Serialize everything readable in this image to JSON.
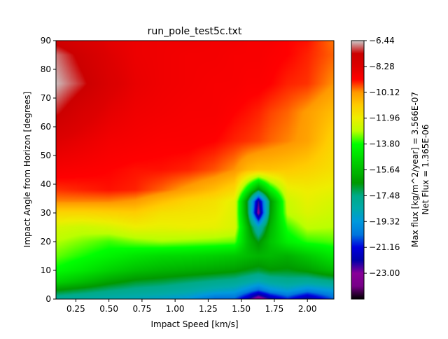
{
  "chart_data": {
    "type": "heatmap",
    "title": "run_pole_test5c.txt",
    "xlabel": "Impact Speed [km/s]",
    "ylabel": "Impact Angle from Horizon [degrees]",
    "xlim": [
      0.1,
      2.2
    ],
    "ylim": [
      0,
      90
    ],
    "x_ticks": [
      0.25,
      0.5,
      0.75,
      1.0,
      1.25,
      1.5,
      1.75,
      2.0
    ],
    "x_tick_labels": [
      "0.25",
      "0.50",
      "0.75",
      "1.00",
      "1.25",
      "1.50",
      "1.75",
      "2.00"
    ],
    "y_ticks": [
      0,
      10,
      20,
      30,
      40,
      50,
      60,
      70,
      80,
      90
    ],
    "y_tick_labels": [
      "0",
      "10",
      "20",
      "30",
      "40",
      "50",
      "60",
      "70",
      "80",
      "90"
    ],
    "colorbar": {
      "label_line1": "Max flux [kg/m^2/year] = 3.566E-07",
      "label_line2": "Net Flux = 1.365E-06",
      "vmin": -24.84,
      "vmax": -6.44,
      "ticks": [
        -6.44,
        -8.28,
        -10.12,
        -11.96,
        -13.8,
        -15.64,
        -17.48,
        -19.32,
        -21.16,
        -23.0
      ],
      "tick_labels": [
        "−6.44",
        "−8.28",
        "−10.12",
        "−11.96",
        "−13.80",
        "−15.64",
        "−17.48",
        "−19.32",
        "−21.16",
        "−23.00"
      ],
      "colormap": "nipy_spectral"
    },
    "grid_x": [
      0.1,
      0.3,
      0.5,
      0.7,
      0.9,
      1.1,
      1.3,
      1.45,
      1.55,
      1.63,
      1.72,
      1.85,
      2.0,
      2.2
    ],
    "grid_y": [
      0,
      3,
      6,
      10,
      15,
      20,
      25,
      30,
      34,
      38,
      45,
      55,
      65,
      75,
      85,
      90
    ],
    "z": [
      [
        -18.0,
        -18.2,
        -18.5,
        -18.7,
        -19.0,
        -19.4,
        -20.5,
        -20.5,
        -22.0,
        -23.8,
        -22.2,
        -21.0,
        -22.3,
        -20.5
      ],
      [
        -16.6,
        -17.0,
        -17.4,
        -17.7,
        -17.9,
        -18.2,
        -18.7,
        -19.0,
        -19.8,
        -20.5,
        -19.6,
        -19.1,
        -19.9,
        -19.2
      ],
      [
        -15.0,
        -15.6,
        -16.3,
        -16.8,
        -17.0,
        -17.3,
        -17.6,
        -17.8,
        -18.2,
        -18.6,
        -18.1,
        -17.8,
        -18.0,
        -17.6
      ],
      [
        -13.9,
        -14.4,
        -15.0,
        -15.5,
        -15.8,
        -16.0,
        -16.2,
        -16.4,
        -16.7,
        -16.9,
        -16.6,
        -16.7,
        -16.4,
        -15.6
      ],
      [
        -13.3,
        -13.7,
        -14.1,
        -14.5,
        -14.8,
        -14.9,
        -15.1,
        -15.3,
        -15.6,
        -15.8,
        -15.7,
        -15.9,
        -15.3,
        -14.4
      ],
      [
        -12.9,
        -13.2,
        -13.5,
        -13.2,
        -13.0,
        -13.1,
        -13.2,
        -13.3,
        -15.6,
        -16.7,
        -15.4,
        -14.2,
        -13.6,
        -13.4
      ],
      [
        -12.4,
        -12.6,
        -12.4,
        -12.0,
        -12.1,
        -12.0,
        -12.1,
        -12.4,
        -15.9,
        -18.6,
        -15.8,
        -13.6,
        -12.8,
        -12.9
      ],
      [
        -11.3,
        -11.3,
        -11.2,
        -11.1,
        -11.6,
        -11.7,
        -11.8,
        -12.3,
        -16.9,
        -23.3,
        -16.4,
        -12.8,
        -12.3,
        -12.6
      ],
      [
        -10.0,
        -10.0,
        -10.0,
        -10.2,
        -10.8,
        -11.3,
        -11.6,
        -12.2,
        -17.0,
        -22.5,
        -16.6,
        -12.6,
        -12.1,
        -12.4
      ],
      [
        -9.5,
        -9.4,
        -9.3,
        -9.4,
        -9.8,
        -10.3,
        -10.8,
        -11.4,
        -14.4,
        -16.8,
        -14.3,
        -12.1,
        -11.9,
        -12.1
      ],
      [
        -9.0,
        -9.1,
        -9.2,
        -9.3,
        -9.3,
        -9.4,
        -9.7,
        -10.1,
        -10.7,
        -10.9,
        -10.9,
        -11.0,
        -11.2,
        -11.6
      ],
      [
        -8.3,
        -8.6,
        -8.9,
        -9.0,
        -9.1,
        -9.1,
        -9.2,
        -9.4,
        -9.5,
        -9.6,
        -9.8,
        -10.0,
        -10.3,
        -11.3
      ],
      [
        -7.2,
        -8.0,
        -8.5,
        -8.8,
        -8.9,
        -9.0,
        -9.0,
        -9.2,
        -9.3,
        -9.4,
        -9.6,
        -9.8,
        -10.2,
        -10.8
      ],
      [
        -6.5,
        -7.2,
        -8.1,
        -8.6,
        -8.8,
        -8.9,
        -9.0,
        -9.0,
        -9.1,
        -9.1,
        -9.2,
        -9.4,
        -9.5,
        -10.1
      ],
      [
        -6.8,
        -7.6,
        -8.3,
        -8.7,
        -8.8,
        -8.9,
        -8.9,
        -9.0,
        -9.0,
        -9.0,
        -9.1,
        -9.2,
        -9.4,
        -9.8
      ],
      [
        -7.6,
        -8.1,
        -8.5,
        -8.7,
        -8.8,
        -8.8,
        -8.9,
        -8.9,
        -9.0,
        -9.0,
        -9.0,
        -9.2,
        -9.3,
        -9.9
      ]
    ]
  }
}
